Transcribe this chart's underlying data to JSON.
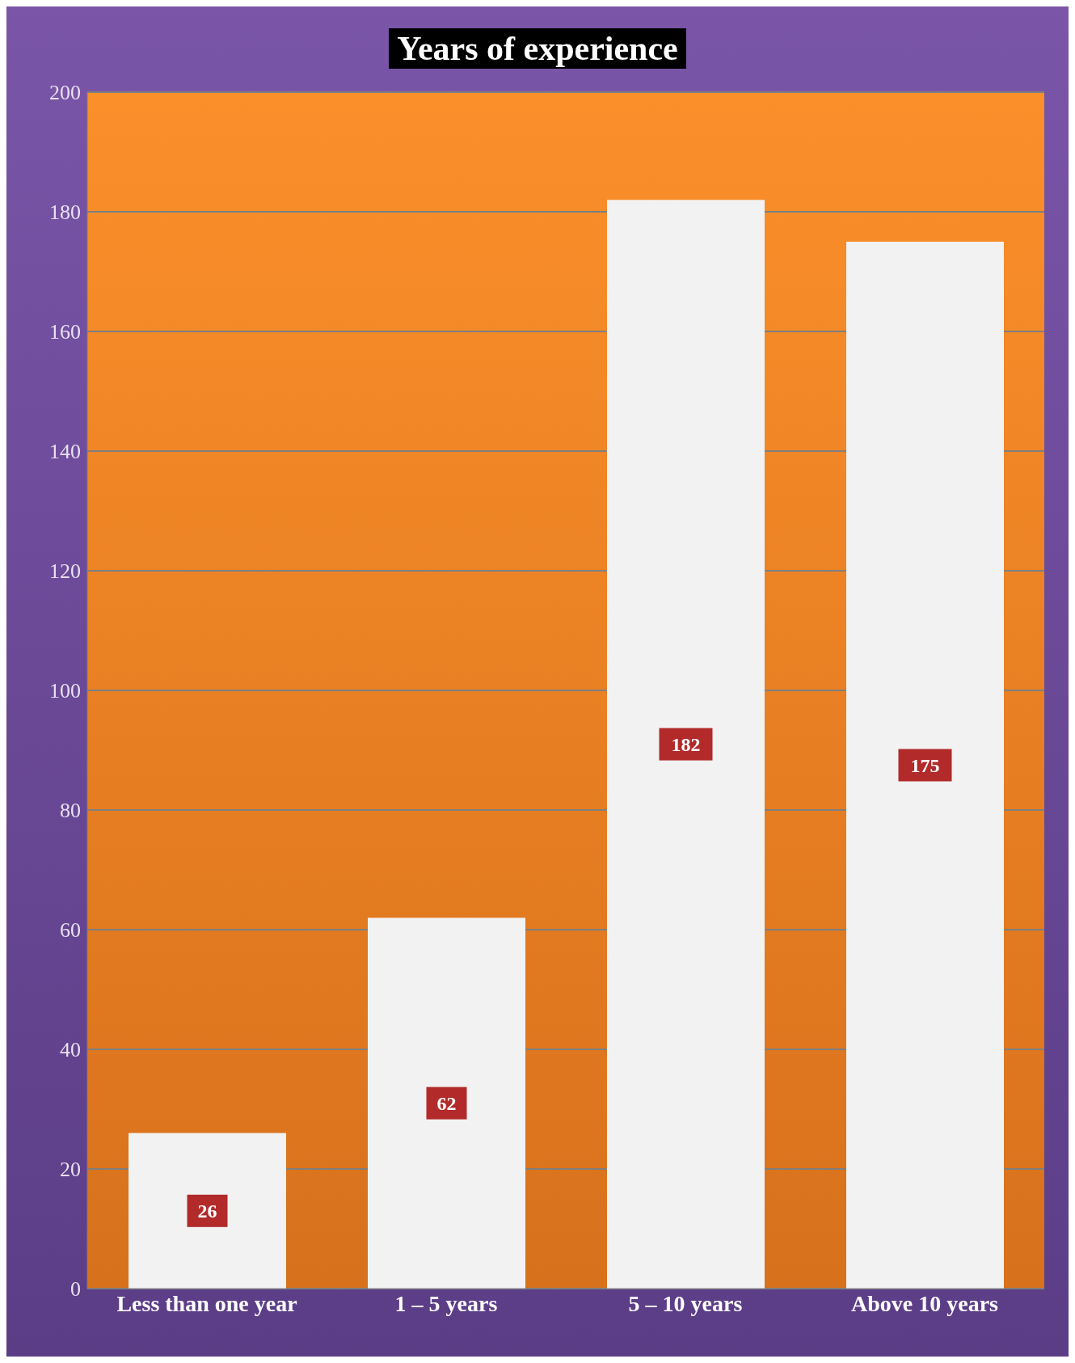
{
  "chart_data": {
    "type": "bar",
    "title": "Years of experience",
    "categories": [
      "Less than one year",
      "1 – 5 years",
      "5 – 10 years",
      "Above 10 years"
    ],
    "values": [
      26,
      62,
      182,
      175
    ],
    "color": "#f2f2f2",
    "ylim": [
      0,
      200
    ],
    "yticks": [
      0,
      20,
      40,
      60,
      80,
      100,
      120,
      140,
      160,
      180,
      200
    ],
    "grid": "y",
    "data_labels": true
  }
}
